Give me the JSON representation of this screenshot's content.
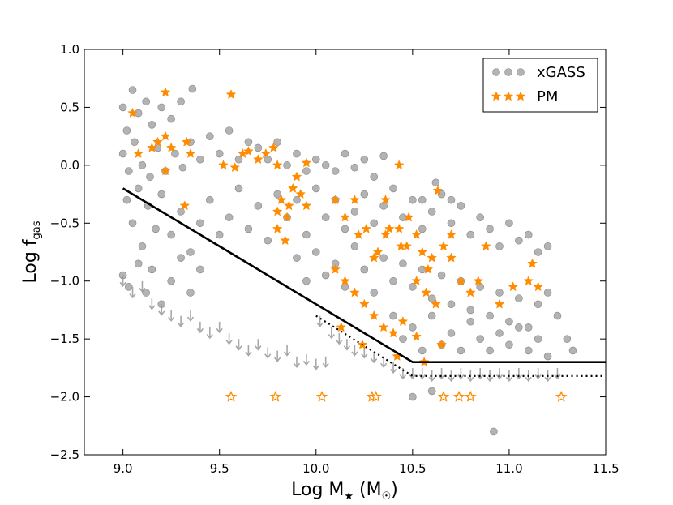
{
  "chart_data": {
    "type": "scatter",
    "xlabel": "Log M★ (M☉)",
    "ylabel": "Log f_gas",
    "xlabel_parts": {
      "main": "Log M",
      "sub": "★",
      "unit_open": " (M",
      "unit_sub": "☉",
      "unit_close": ")"
    },
    "ylabel_parts": {
      "main": "Log f",
      "sub": "gas"
    },
    "xlim": [
      8.8,
      11.5
    ],
    "ylim": [
      -2.5,
      1.0
    ],
    "x_ticks": [
      9.0,
      9.5,
      10.0,
      10.5,
      11.0,
      11.5
    ],
    "x_tick_labels": [
      "9.0",
      "9.5",
      "10.0",
      "10.5",
      "11.0",
      "11.5"
    ],
    "y_ticks": [
      1.0,
      0.5,
      0.0,
      -0.5,
      -1.0,
      -1.5,
      -2.0,
      -2.5
    ],
    "y_tick_labels": [
      "1.0",
      "0.5",
      "0.0",
      "−0.5",
      "−1.0",
      "−1.5",
      "−2.0",
      "−2.5"
    ],
    "grid": false,
    "legend_position": "top-right",
    "legend": [
      {
        "label": "xGASS",
        "marker": "circle",
        "color": "#999999"
      },
      {
        "label": "PM",
        "marker": "star",
        "color": "#ff8c00"
      }
    ],
    "colors": {
      "xgass": "#999999",
      "pm": "#ff8c00",
      "line": "#000000"
    },
    "series": [
      {
        "name": "xGASS",
        "marker": "circle",
        "points": [
          [
            9.0,
            0.5
          ],
          [
            9.02,
            0.3
          ],
          [
            9.05,
            0.65
          ],
          [
            9.08,
            0.45
          ],
          [
            9.12,
            0.55
          ],
          [
            9.15,
            0.35
          ],
          [
            9.2,
            0.5
          ],
          [
            9.25,
            0.4
          ],
          [
            9.3,
            0.55
          ],
          [
            9.36,
            0.66
          ],
          [
            9.0,
            0.1
          ],
          [
            9.03,
            -0.05
          ],
          [
            9.06,
            0.2
          ],
          [
            9.1,
            0.0
          ],
          [
            9.14,
            -0.1
          ],
          [
            9.18,
            0.15
          ],
          [
            9.22,
            -0.05
          ],
          [
            9.27,
            0.1
          ],
          [
            9.31,
            -0.02
          ],
          [
            9.35,
            0.2
          ],
          [
            9.4,
            0.05
          ],
          [
            9.45,
            0.25
          ],
          [
            9.5,
            0.1
          ],
          [
            9.55,
            0.3
          ],
          [
            9.6,
            0.05
          ],
          [
            9.65,
            0.2
          ],
          [
            9.7,
            0.15
          ],
          [
            9.75,
            0.05
          ],
          [
            9.8,
            0.2
          ],
          [
            9.85,
            0.0
          ],
          [
            9.9,
            0.1
          ],
          [
            9.95,
            -0.05
          ],
          [
            10.0,
            0.05
          ],
          [
            10.05,
            0.0
          ],
          [
            10.1,
            -0.05
          ],
          [
            10.15,
            0.1
          ],
          [
            10.2,
            -0.02
          ],
          [
            10.25,
            0.05
          ],
          [
            10.3,
            -0.1
          ],
          [
            10.35,
            0.08
          ],
          [
            9.02,
            -0.3
          ],
          [
            9.05,
            -0.5
          ],
          [
            9.08,
            -0.2
          ],
          [
            9.1,
            -0.7
          ],
          [
            9.13,
            -0.35
          ],
          [
            9.17,
            -0.55
          ],
          [
            9.2,
            -0.25
          ],
          [
            9.25,
            -0.6
          ],
          [
            9.3,
            -0.4
          ],
          [
            9.35,
            -0.75
          ],
          [
            9.4,
            -0.5
          ],
          [
            9.45,
            -0.3
          ],
          [
            9.5,
            -0.6
          ],
          [
            9.55,
            -0.45
          ],
          [
            9.6,
            -0.2
          ],
          [
            9.65,
            -0.55
          ],
          [
            9.7,
            -0.35
          ],
          [
            9.75,
            -0.65
          ],
          [
            9.8,
            -0.25
          ],
          [
            9.85,
            -0.45
          ],
          [
            9.9,
            -0.3
          ],
          [
            9.95,
            -0.6
          ],
          [
            10.0,
            -0.2
          ],
          [
            10.05,
            -0.45
          ],
          [
            10.1,
            -0.3
          ],
          [
            10.15,
            -0.55
          ],
          [
            10.2,
            -0.4
          ],
          [
            10.25,
            -0.25
          ],
          [
            10.3,
            -0.5
          ],
          [
            10.35,
            -0.35
          ],
          [
            10.4,
            -0.2
          ],
          [
            10.45,
            -0.45
          ],
          [
            10.5,
            -0.3
          ],
          [
            10.55,
            -0.55
          ],
          [
            10.6,
            -0.4
          ],
          [
            10.65,
            -0.25
          ],
          [
            10.7,
            -0.5
          ],
          [
            10.75,
            -0.35
          ],
          [
            10.8,
            -0.6
          ],
          [
            10.85,
            -0.45
          ],
          [
            10.9,
            -0.55
          ],
          [
            10.95,
            -0.7
          ],
          [
            11.0,
            -0.5
          ],
          [
            11.05,
            -0.65
          ],
          [
            11.1,
            -0.6
          ],
          [
            11.15,
            -0.75
          ],
          [
            11.2,
            -0.7
          ],
          [
            10.55,
            -0.3
          ],
          [
            10.62,
            -0.15
          ],
          [
            10.7,
            -0.3
          ],
          [
            9.0,
            -0.95
          ],
          [
            9.03,
            -1.05
          ],
          [
            9.08,
            -0.85
          ],
          [
            9.12,
            -1.1
          ],
          [
            9.15,
            -0.9
          ],
          [
            9.2,
            -1.2
          ],
          [
            9.25,
            -1.0
          ],
          [
            9.3,
            -0.8
          ],
          [
            9.35,
            -1.1
          ],
          [
            9.4,
            -0.9
          ],
          [
            9.9,
            -0.8
          ],
          [
            9.95,
            -1.0
          ],
          [
            10.0,
            -0.75
          ],
          [
            10.05,
            -0.95
          ],
          [
            10.1,
            -0.85
          ],
          [
            10.15,
            -1.05
          ],
          [
            10.2,
            -0.7
          ],
          [
            10.25,
            -0.9
          ],
          [
            10.3,
            -1.1
          ],
          [
            10.35,
            -0.8
          ],
          [
            10.4,
            -1.0
          ],
          [
            10.45,
            -0.85
          ],
          [
            10.5,
            -1.05
          ],
          [
            10.55,
            -0.9
          ],
          [
            10.6,
            -1.15
          ],
          [
            10.65,
            -0.95
          ],
          [
            10.7,
            -1.2
          ],
          [
            10.75,
            -1.0
          ],
          [
            10.8,
            -1.25
          ],
          [
            10.85,
            -1.05
          ],
          [
            10.9,
            -1.3
          ],
          [
            10.95,
            -1.1
          ],
          [
            11.0,
            -1.35
          ],
          [
            11.05,
            -1.15
          ],
          [
            11.1,
            -1.4
          ],
          [
            11.15,
            -1.2
          ],
          [
            11.2,
            -1.1
          ],
          [
            11.25,
            -1.3
          ],
          [
            11.3,
            -1.5
          ],
          [
            11.33,
            -1.6
          ],
          [
            10.4,
            -1.3
          ],
          [
            10.45,
            -1.5
          ],
          [
            10.5,
            -1.4
          ],
          [
            10.55,
            -1.6
          ],
          [
            10.6,
            -1.3
          ],
          [
            10.65,
            -1.55
          ],
          [
            10.7,
            -1.45
          ],
          [
            10.75,
            -1.6
          ],
          [
            10.8,
            -1.35
          ],
          [
            10.85,
            -1.5
          ],
          [
            10.9,
            -1.6
          ],
          [
            10.95,
            -1.45
          ],
          [
            11.0,
            -1.55
          ],
          [
            11.05,
            -1.4
          ],
          [
            11.1,
            -1.6
          ],
          [
            11.15,
            -1.5
          ],
          [
            11.2,
            -1.65
          ],
          [
            10.92,
            -2.3
          ],
          [
            10.6,
            -1.95
          ],
          [
            10.5,
            -2.0
          ]
        ]
      },
      {
        "name": "xGASS upper limits",
        "marker": "arrow",
        "points": [
          [
            9.0,
            -1.0
          ],
          [
            9.05,
            -1.1
          ],
          [
            9.1,
            -1.05
          ],
          [
            9.15,
            -1.2
          ],
          [
            9.2,
            -1.25
          ],
          [
            9.25,
            -1.3
          ],
          [
            9.3,
            -1.35
          ],
          [
            9.35,
            -1.3
          ],
          [
            9.4,
            -1.4
          ],
          [
            9.45,
            -1.45
          ],
          [
            9.5,
            -1.4
          ],
          [
            9.55,
            -1.5
          ],
          [
            9.6,
            -1.55
          ],
          [
            9.65,
            -1.6
          ],
          [
            9.7,
            -1.55
          ],
          [
            9.75,
            -1.62
          ],
          [
            9.8,
            -1.65
          ],
          [
            9.85,
            -1.6
          ],
          [
            9.9,
            -1.7
          ],
          [
            9.95,
            -1.68
          ],
          [
            10.0,
            -1.72
          ],
          [
            10.05,
            -1.7
          ],
          [
            10.02,
            -1.35
          ],
          [
            10.08,
            -1.45
          ],
          [
            10.12,
            -1.5
          ],
          [
            10.16,
            -1.55
          ],
          [
            10.2,
            -1.6
          ],
          [
            10.25,
            -1.62
          ],
          [
            10.3,
            -1.66
          ],
          [
            10.35,
            -1.7
          ],
          [
            10.4,
            -1.75
          ],
          [
            10.45,
            -1.8
          ],
          [
            10.5,
            -1.8
          ],
          [
            10.55,
            -1.8
          ],
          [
            10.6,
            -1.82
          ],
          [
            10.65,
            -1.8
          ],
          [
            10.7,
            -1.82
          ],
          [
            10.75,
            -1.8
          ],
          [
            10.8,
            -1.82
          ],
          [
            10.85,
            -1.8
          ],
          [
            10.9,
            -1.82
          ],
          [
            10.95,
            -1.8
          ],
          [
            11.0,
            -1.82
          ],
          [
            11.05,
            -1.8
          ],
          [
            11.1,
            -1.82
          ],
          [
            11.15,
            -1.8
          ],
          [
            11.2,
            -1.82
          ],
          [
            11.25,
            -1.8
          ]
        ]
      },
      {
        "name": "PM",
        "marker": "star-filled",
        "points": [
          [
            9.05,
            0.45
          ],
          [
            9.22,
            0.63
          ],
          [
            9.56,
            0.61
          ],
          [
            9.08,
            0.1
          ],
          [
            9.15,
            0.15
          ],
          [
            9.18,
            0.2
          ],
          [
            9.22,
            0.25
          ],
          [
            9.25,
            0.15
          ],
          [
            9.33,
            0.2
          ],
          [
            9.35,
            0.1
          ],
          [
            9.22,
            -0.05
          ],
          [
            9.32,
            -0.35
          ],
          [
            9.52,
            0.0
          ],
          [
            9.58,
            -0.02
          ],
          [
            9.62,
            0.1
          ],
          [
            9.65,
            0.12
          ],
          [
            9.7,
            0.05
          ],
          [
            9.74,
            0.1
          ],
          [
            9.78,
            0.15
          ],
          [
            9.8,
            0.0
          ],
          [
            9.8,
            -0.4
          ],
          [
            9.82,
            -0.3
          ],
          [
            9.85,
            -0.45
          ],
          [
            9.86,
            -0.35
          ],
          [
            9.88,
            -0.2
          ],
          [
            9.9,
            -0.1
          ],
          [
            9.92,
            -0.25
          ],
          [
            9.95,
            -0.35
          ],
          [
            9.8,
            -0.55
          ],
          [
            9.84,
            -0.65
          ],
          [
            9.95,
            0.02
          ],
          [
            10.1,
            -0.3
          ],
          [
            10.15,
            -0.45
          ],
          [
            10.2,
            -0.3
          ],
          [
            10.22,
            -0.6
          ],
          [
            10.26,
            -0.55
          ],
          [
            10.3,
            -0.8
          ],
          [
            10.32,
            -0.75
          ],
          [
            10.36,
            -0.6
          ],
          [
            10.38,
            -0.55
          ],
          [
            10.43,
            -0.55
          ],
          [
            10.44,
            -0.7
          ],
          [
            10.48,
            -0.45
          ],
          [
            10.52,
            -0.6
          ],
          [
            10.55,
            -0.75
          ],
          [
            10.58,
            -0.9
          ],
          [
            10.6,
            -0.8
          ],
          [
            10.63,
            -0.22
          ],
          [
            10.66,
            -0.7
          ],
          [
            10.7,
            -0.8
          ],
          [
            10.7,
            -0.6
          ],
          [
            10.75,
            -1.0
          ],
          [
            10.8,
            -1.1
          ],
          [
            10.84,
            -1.0
          ],
          [
            10.88,
            -0.7
          ],
          [
            10.95,
            -1.2
          ],
          [
            11.02,
            -1.05
          ],
          [
            11.1,
            -1.0
          ],
          [
            11.12,
            -0.85
          ],
          [
            11.15,
            -1.05
          ],
          [
            10.43,
            -0.0
          ],
          [
            10.36,
            -0.3
          ],
          [
            10.47,
            -0.7
          ],
          [
            10.52,
            -1.0
          ],
          [
            10.57,
            -1.1
          ],
          [
            10.62,
            -1.2
          ],
          [
            10.65,
            -1.55
          ],
          [
            10.1,
            -0.9
          ],
          [
            10.15,
            -1.0
          ],
          [
            10.2,
            -1.1
          ],
          [
            10.25,
            -1.2
          ],
          [
            10.3,
            -1.3
          ],
          [
            10.35,
            -1.4
          ],
          [
            10.4,
            -1.45
          ],
          [
            10.45,
            -1.35
          ],
          [
            10.13,
            -1.4
          ],
          [
            10.24,
            -1.55
          ],
          [
            10.42,
            -1.65
          ],
          [
            10.52,
            -1.48
          ],
          [
            10.56,
            -1.7
          ]
        ]
      },
      {
        "name": "PM upper limits",
        "marker": "star-open",
        "points": [
          [
            9.56,
            -2.0
          ],
          [
            9.79,
            -2.0
          ],
          [
            10.03,
            -2.0
          ],
          [
            10.29,
            -2.0
          ],
          [
            10.31,
            -2.0
          ],
          [
            10.66,
            -2.0
          ],
          [
            10.74,
            -2.0
          ],
          [
            10.8,
            -2.0
          ],
          [
            11.27,
            -2.0
          ]
        ]
      },
      {
        "name": "relation (solid)",
        "marker": "line-solid",
        "points": [
          [
            9.0,
            -0.2
          ],
          [
            10.5,
            -1.7
          ],
          [
            11.5,
            -1.7
          ]
        ]
      },
      {
        "name": "relation (dotted)",
        "marker": "line-dotted",
        "points": [
          [
            10.0,
            -1.3
          ],
          [
            10.5,
            -1.82
          ],
          [
            11.5,
            -1.82
          ]
        ]
      }
    ]
  }
}
